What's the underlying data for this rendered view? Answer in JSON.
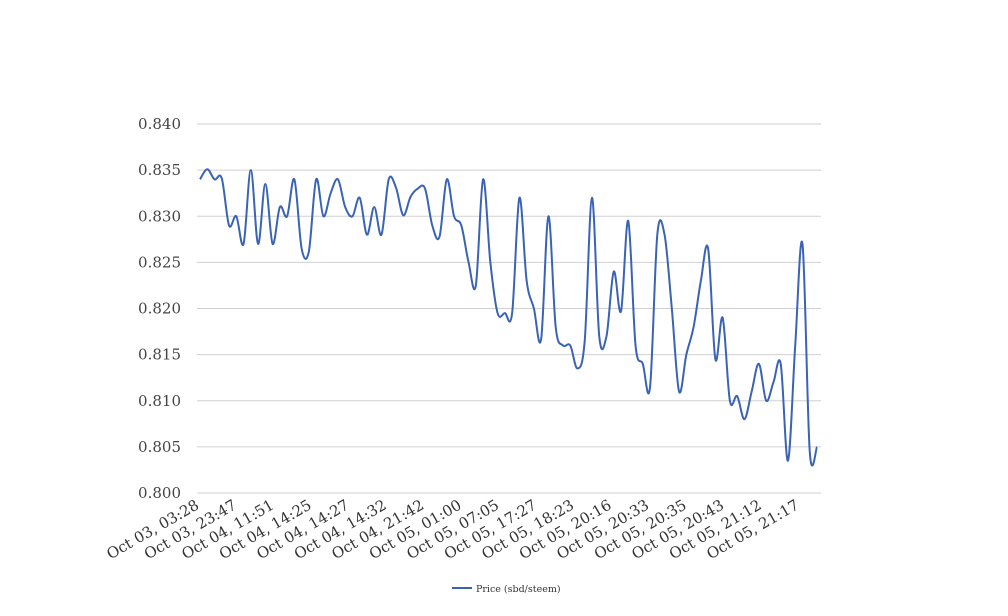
{
  "chart_data": {
    "type": "line",
    "title": "",
    "xlabel": "",
    "ylabel": "",
    "ylim": [
      0.8,
      0.84
    ],
    "y_ticks": [
      "0.800",
      "0.805",
      "0.810",
      "0.815",
      "0.820",
      "0.825",
      "0.830",
      "0.835",
      "0.840"
    ],
    "x_tick_labels": [
      "Oct 03, 03:28",
      "Oct 03, 23:47",
      "Oct 04, 11:51",
      "Oct 04, 14:25",
      "Oct 04, 14:27",
      "Oct 04, 14:32",
      "Oct 04, 21:42",
      "Oct 05, 01:00",
      "Oct 05, 07:05",
      "Oct 05, 17:27",
      "Oct 05, 18:23",
      "Oct 05, 20:16",
      "Oct 05, 20:33",
      "Oct 05, 20:35",
      "Oct 05, 20:43",
      "Oct 05, 21:12",
      "Oct 05, 21:17"
    ],
    "grid": true,
    "legend_position": "bottom",
    "series": [
      {
        "name": "Price (sbd/steem)",
        "color": "#3a63b5",
        "values": [
          0.834,
          0.8351,
          0.834,
          0.8341,
          0.829,
          0.83,
          0.827,
          0.835,
          0.827,
          0.8335,
          0.827,
          0.831,
          0.83,
          0.834,
          0.8265,
          0.8262,
          0.834,
          0.83,
          0.8325,
          0.834,
          0.831,
          0.83,
          0.832,
          0.828,
          0.831,
          0.828,
          0.834,
          0.8331,
          0.8301,
          0.8321,
          0.833,
          0.833,
          0.829,
          0.8278,
          0.834,
          0.83,
          0.829,
          0.825,
          0.8225,
          0.834,
          0.825,
          0.8195,
          0.8195,
          0.8195,
          0.832,
          0.823,
          0.82,
          0.8167,
          0.83,
          0.818,
          0.816,
          0.816,
          0.8135,
          0.8165,
          0.832,
          0.817,
          0.817,
          0.824,
          0.8197,
          0.8295,
          0.816,
          0.814,
          0.8115,
          0.828,
          0.828,
          0.82,
          0.811,
          0.815,
          0.818,
          0.823,
          0.8265,
          0.8145,
          0.819,
          0.81,
          0.8105,
          0.808,
          0.811,
          0.814,
          0.81,
          0.812,
          0.814,
          0.8035,
          0.816,
          0.827,
          0.8045,
          0.805
        ]
      }
    ]
  }
}
